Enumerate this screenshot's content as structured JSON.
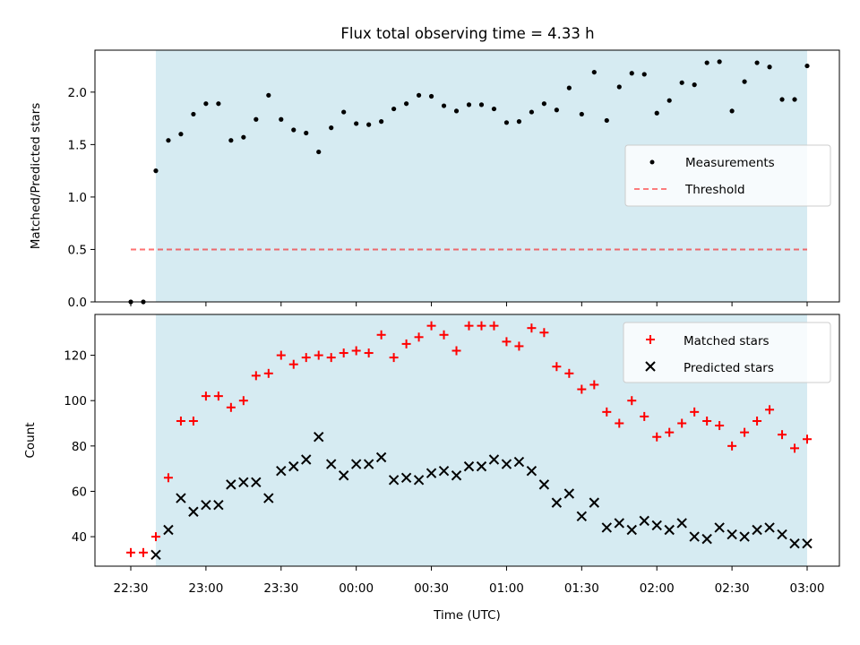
{
  "title": "Flux total observing time = 4.33 h",
  "colors": {
    "shade": "#add8e6",
    "measure": "#000000",
    "threshold": "#ff0000",
    "matched": "#ff0000",
    "predicted": "#000000"
  },
  "chart_data": [
    {
      "type": "scatter",
      "panel": "top",
      "ylabel": "Matched/Predicted stars",
      "xlabel": "",
      "xlim_minutes": [
        -15,
        15
      ],
      "ylim": [
        0,
        2.4
      ],
      "yticks": [
        0.0,
        0.5,
        1.0,
        1.5,
        2.0
      ],
      "ytick_labels": [
        "0.0",
        "0.5",
        "1.0",
        "1.5",
        "2.0"
      ],
      "shaded_span_minutes": [
        -15,
        15
      ],
      "threshold": {
        "name": "Threshold",
        "value": 0.5,
        "x_start": -30,
        "x_end": 180
      },
      "legend": [
        "Measurements",
        "Threshold"
      ],
      "legend_loc": "center-right",
      "series": [
        {
          "name": "Measurements",
          "x": [
            "22:30",
            "22:35",
            "22:40",
            "22:45",
            "22:50",
            "22:55",
            "23:00",
            "23:05",
            "23:10",
            "23:15",
            "23:20",
            "23:25",
            "23:30",
            "23:35",
            "23:40",
            "23:45",
            "23:50",
            "23:55",
            "00:00",
            "00:05",
            "00:10",
            "00:15",
            "00:20",
            "00:25",
            "00:30",
            "00:35",
            "00:40",
            "00:45",
            "00:50",
            "00:55",
            "01:00",
            "01:05",
            "01:10",
            "01:15",
            "01:20",
            "01:25",
            "01:30",
            "01:35",
            "01:40",
            "01:45",
            "01:50",
            "01:55",
            "02:00",
            "02:05",
            "02:10",
            "02:15",
            "02:20",
            "02:25",
            "02:30",
            "02:35",
            "02:40",
            "02:45",
            "02:50",
            "02:55",
            "03:00"
          ],
          "values": [
            0.0,
            0.0,
            1.25,
            1.54,
            1.6,
            1.79,
            1.89,
            1.89,
            1.54,
            1.57,
            1.74,
            1.97,
            1.74,
            1.64,
            1.61,
            1.43,
            1.66,
            1.81,
            1.7,
            1.69,
            1.72,
            1.84,
            1.89,
            1.97,
            1.96,
            1.87,
            1.82,
            1.88,
            1.88,
            1.84,
            1.71,
            1.72,
            1.81,
            1.89,
            1.83,
            2.04,
            1.79,
            2.19,
            1.73,
            2.05,
            2.18,
            2.17,
            1.8,
            1.92,
            2.09,
            2.07,
            2.28,
            2.29,
            1.82,
            2.1,
            2.28,
            2.24,
            1.93,
            1.93,
            2.25
          ]
        }
      ]
    },
    {
      "type": "scatter",
      "panel": "bottom",
      "ylabel": "Count",
      "xlabel": "Time (UTC)",
      "xticks": [
        "22:30",
        "23:00",
        "23:30",
        "00:00",
        "00:30",
        "01:00",
        "01:30",
        "02:00",
        "02:30",
        "03:00"
      ],
      "ylim": [
        27,
        138
      ],
      "yticks": [
        40,
        60,
        80,
        100,
        120
      ],
      "legend": [
        "Matched stars",
        "Predicted stars"
      ],
      "legend_loc": "upper-right",
      "series": [
        {
          "name": "Matched stars",
          "marker": "+",
          "x": [
            "22:30",
            "22:35",
            "22:40",
            "22:45",
            "22:50",
            "22:55",
            "23:00",
            "23:05",
            "23:10",
            "23:15",
            "23:20",
            "23:25",
            "23:30",
            "23:35",
            "23:40",
            "23:45",
            "23:50",
            "23:55",
            "00:00",
            "00:05",
            "00:10",
            "00:15",
            "00:20",
            "00:25",
            "00:30",
            "00:35",
            "00:40",
            "00:45",
            "00:50",
            "00:55",
            "01:00",
            "01:05",
            "01:10",
            "01:15",
            "01:20",
            "01:25",
            "01:30",
            "01:35",
            "01:40",
            "01:45",
            "01:50",
            "01:55",
            "02:00",
            "02:05",
            "02:10",
            "02:15",
            "02:20",
            "02:25",
            "02:30",
            "02:35",
            "02:40",
            "02:45",
            "02:50",
            "02:55",
            "03:00"
          ],
          "values": [
            33,
            33,
            40,
            66,
            91,
            91,
            102,
            102,
            97,
            100,
            111,
            112,
            120,
            116,
            119,
            120,
            119,
            121,
            122,
            121,
            129,
            119,
            125,
            128,
            133,
            129,
            122,
            133,
            133,
            133,
            126,
            124,
            132,
            130,
            115,
            112,
            105,
            107,
            95,
            90,
            100,
            93,
            84,
            86,
            90,
            95,
            91,
            89,
            80,
            86,
            91,
            96,
            85,
            79,
            83
          ]
        },
        {
          "name": "Predicted stars",
          "marker": "x",
          "x": [
            "22:40",
            "22:45",
            "22:50",
            "22:55",
            "23:00",
            "23:05",
            "23:10",
            "23:15",
            "23:20",
            "23:25",
            "23:30",
            "23:35",
            "23:40",
            "23:45",
            "23:50",
            "23:55",
            "00:00",
            "00:05",
            "00:10",
            "00:15",
            "00:20",
            "00:25",
            "00:30",
            "00:35",
            "00:40",
            "00:45",
            "00:50",
            "00:55",
            "01:00",
            "01:05",
            "01:10",
            "01:15",
            "01:20",
            "01:25",
            "01:30",
            "01:35",
            "01:40",
            "01:45",
            "01:50",
            "01:55",
            "02:00",
            "02:05",
            "02:10",
            "02:15",
            "02:20",
            "02:25",
            "02:30",
            "02:35",
            "02:40",
            "02:45",
            "02:50",
            "02:55",
            "03:00"
          ],
          "values": [
            32,
            43,
            57,
            51,
            54,
            54,
            63,
            64,
            64,
            57,
            69,
            71,
            74,
            84,
            72,
            67,
            72,
            72,
            75,
            65,
            66,
            65,
            68,
            69,
            67,
            71,
            71,
            74,
            72,
            73,
            69,
            63,
            55,
            59,
            49,
            55,
            44,
            46,
            43,
            47,
            45,
            43,
            46,
            40,
            39,
            44,
            41,
            40,
            43,
            44,
            41,
            37,
            37
          ]
        }
      ]
    }
  ]
}
